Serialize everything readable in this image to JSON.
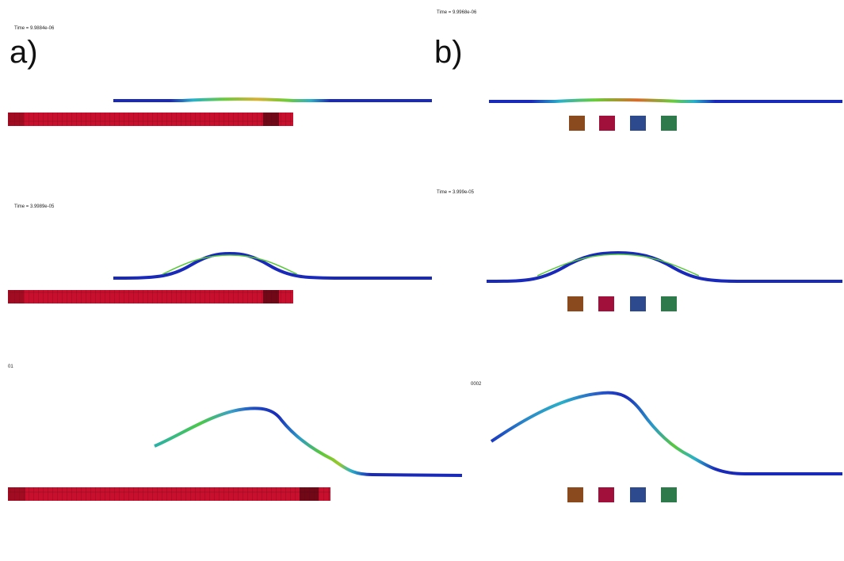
{
  "panels": {
    "a": {
      "label": "a)",
      "frames": [
        {
          "time": "Time =  9.9884e-06"
        },
        {
          "time": "Time =  3.9989e-05"
        },
        {
          "time": "01"
        }
      ]
    },
    "b": {
      "label": "b)",
      "frames": [
        {
          "time": "Time =  9.9968e-06"
        },
        {
          "time": "Time =  3.999e-05"
        },
        {
          "time": "0002"
        }
      ]
    }
  },
  "colors": {
    "electrode_red": "#c8102e",
    "electrode_dark": "#5a0a14",
    "sheet_blue": "#1a2ab8",
    "sheet_green": "#5ac83c",
    "sheet_red": "#d83a1a",
    "coil_brown": "#8a4a1e",
    "coil_crimson": "#a0103a",
    "coil_blue": "#2e4a8e",
    "coil_green": "#2e7a4a"
  },
  "coil_blocks": [
    {
      "name": "coil-brown",
      "color_key": "coil_brown"
    },
    {
      "name": "coil-crimson",
      "color_key": "coil_crimson"
    },
    {
      "name": "coil-blue",
      "color_key": "coil_blue"
    },
    {
      "name": "coil-green",
      "color_key": "coil_green"
    }
  ]
}
